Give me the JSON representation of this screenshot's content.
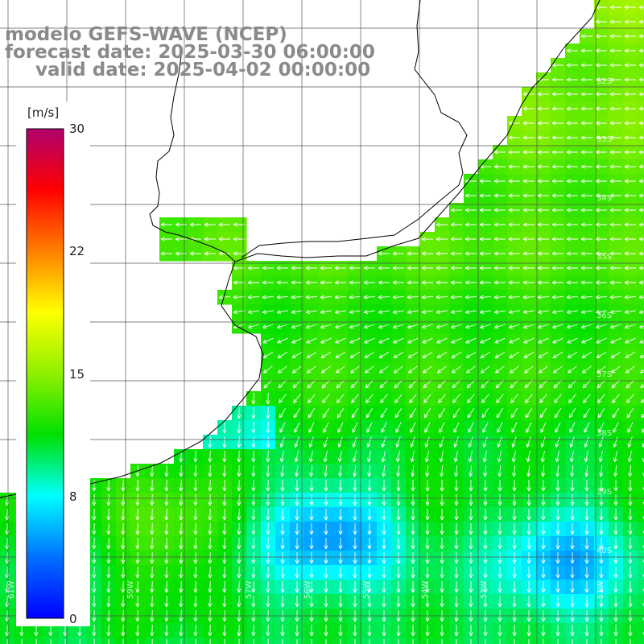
{
  "title": {
    "line1": "modelo GEFS-WAVE (NCEP)",
    "line2": "forecast date: 2025-03-30 06:00:00",
    "line3": "valid date: 2025-04-02 00:00:00"
  },
  "colorbar": {
    "unit": "[m/s]",
    "min": 0,
    "max": 30,
    "ticks": [
      "30",
      "22",
      "15",
      "8",
      "0"
    ],
    "colors": [
      "#0000ff",
      "#0070ff",
      "#00ffff",
      "#00e000",
      "#90f000",
      "#ffff00",
      "#ff8000",
      "#ff0000",
      "#b0006e"
    ]
  },
  "map": {
    "variable": "wind speed",
    "arrow_color": "#ffffff",
    "land_color": "#ffffff",
    "grid_color": "#555555",
    "lat_labels": [
      "32S",
      "33S",
      "34S",
      "35S",
      "36S",
      "37S",
      "38S",
      "39S",
      "40S"
    ],
    "lon_labels": [
      "61W",
      "60W",
      "59W",
      "57W",
      "56W",
      "55W",
      "54W",
      "53W",
      "51W"
    ]
  }
}
